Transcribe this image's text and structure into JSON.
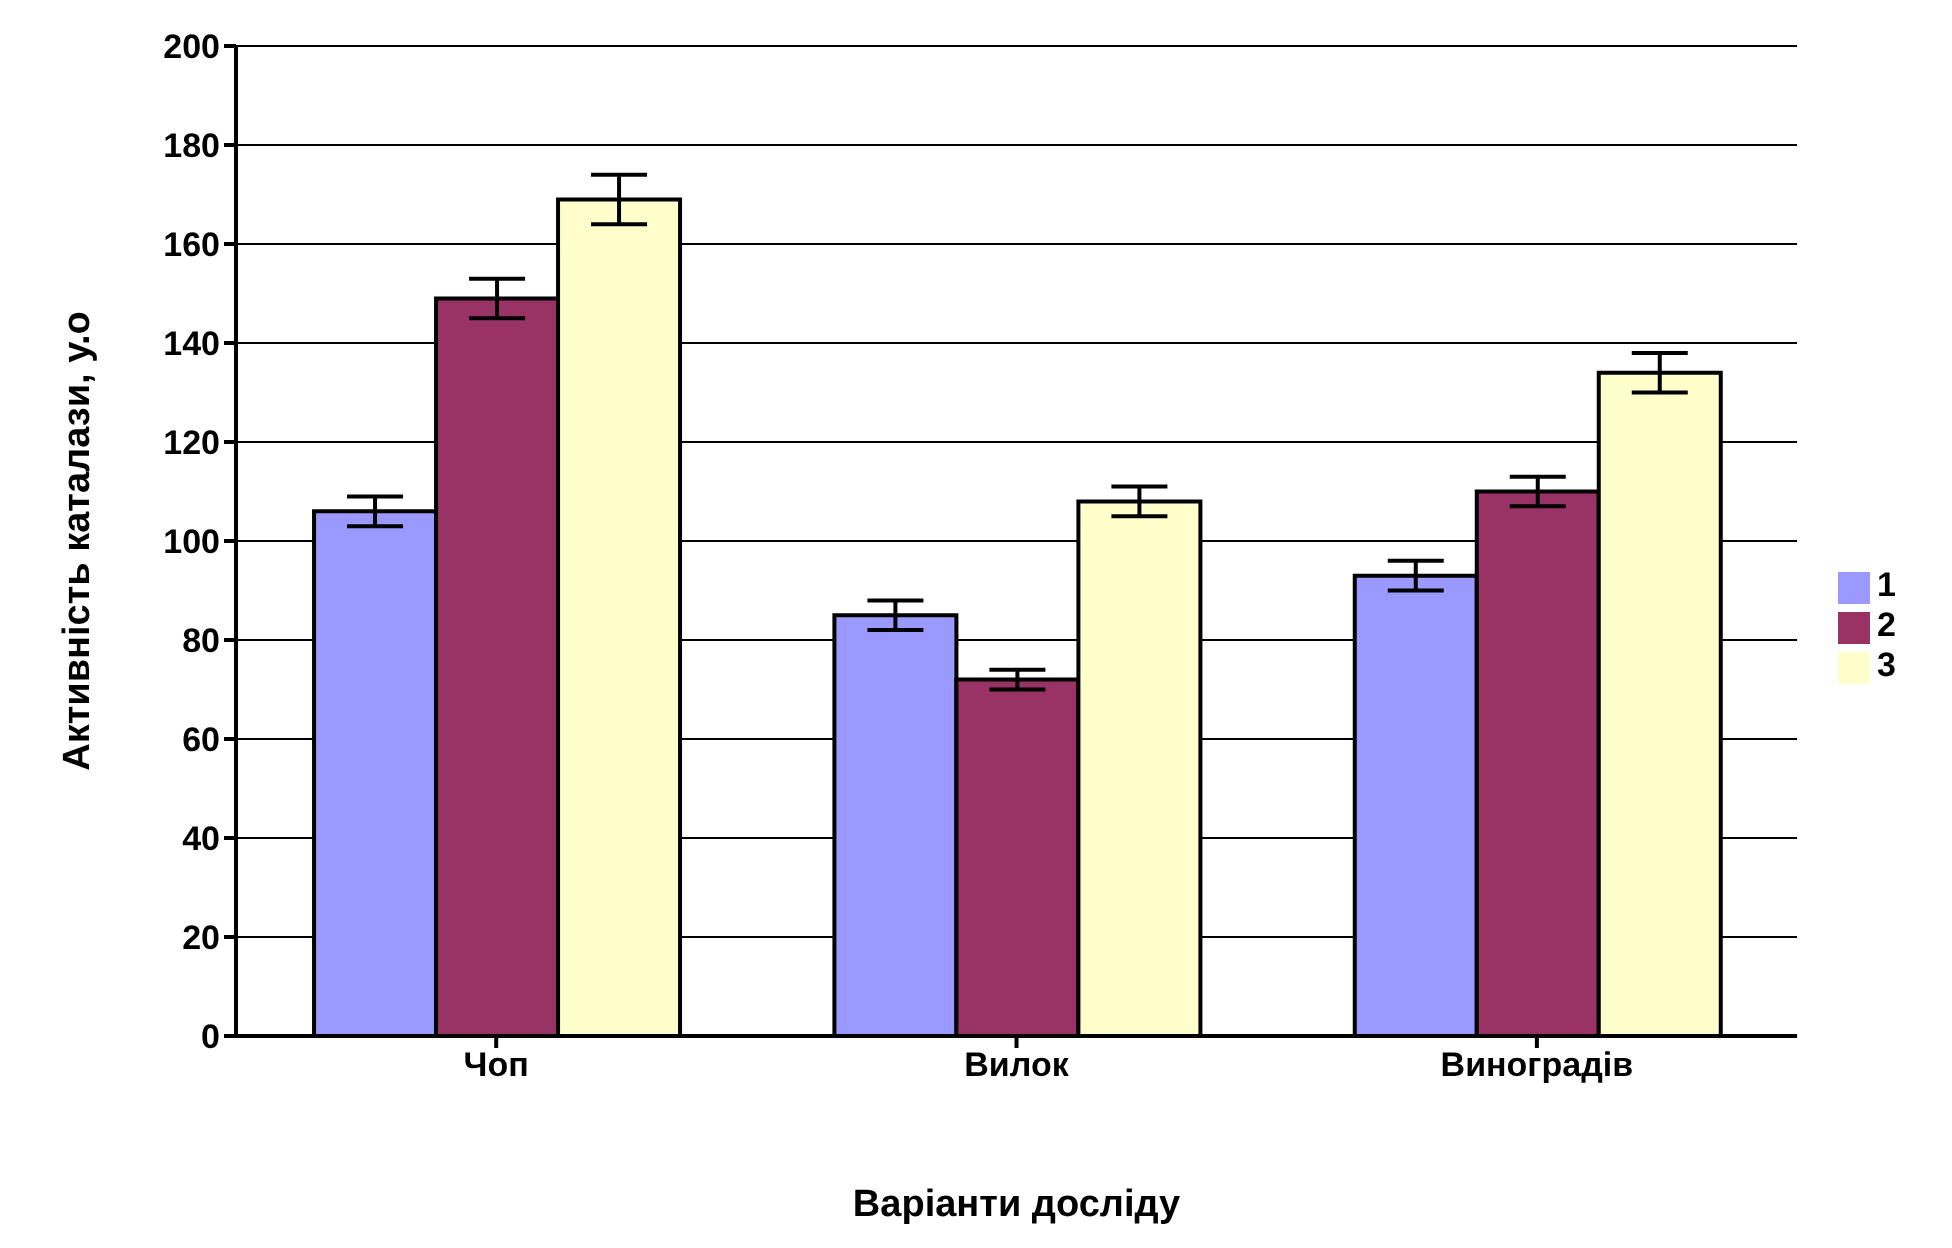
{
  "chart_data": {
    "type": "bar",
    "xlabel": "Варіанти досліду",
    "ylabel": "Активність каталази, у.о",
    "categories": [
      "Чоп",
      "Вилок",
      "Виноградів"
    ],
    "series": [
      {
        "name": "1",
        "color": "#9999ff",
        "values": [
          106,
          85,
          93
        ],
        "errors": [
          3,
          3,
          3
        ]
      },
      {
        "name": "2",
        "color": "#993366",
        "values": [
          149,
          72,
          110
        ],
        "errors": [
          4,
          2,
          3
        ]
      },
      {
        "name": "3",
        "color": "#ffffcc",
        "values": [
          169,
          108,
          134
        ],
        "errors": [
          5,
          3,
          4
        ]
      }
    ],
    "ylim": [
      0,
      200
    ],
    "yticks": [
      0,
      20,
      40,
      60,
      80,
      100,
      120,
      140,
      160,
      180,
      200
    ],
    "grid": "y",
    "legend": "right"
  }
}
